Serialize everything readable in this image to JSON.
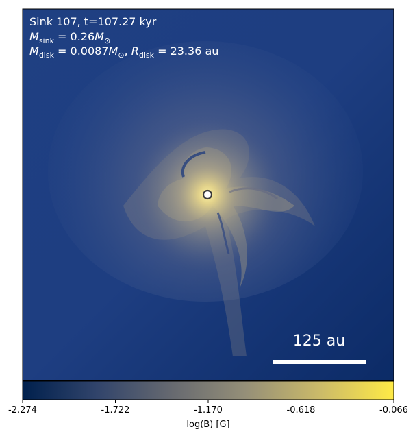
{
  "annotations": {
    "line1": "Sink 107, t=107.27 kyr",
    "line2_parts": [
      "M",
      "sink",
      " = 0.26",
      "M",
      "⊙"
    ],
    "line3_parts": [
      "M",
      "disk",
      " = 0.0087",
      "M",
      "⊙",
      ", ",
      "R",
      "disk",
      " = 23.36 au"
    ]
  },
  "scalebar": {
    "label": "125 au",
    "length_au": 125
  },
  "colorbar": {
    "label": "log(B) [G]",
    "ticks": [
      "-2.274",
      "-1.722",
      "-1.170",
      "-0.618",
      "-0.066"
    ],
    "min": -2.274,
    "max": -0.066,
    "stops": [
      "#00204d",
      "#31446b",
      "#666970",
      "#958f78",
      "#cbba69",
      "#ffea46"
    ]
  },
  "chart_data": {
    "type": "heatmap",
    "title": "Sink 107, t=107.27 kyr",
    "quantity": "log(B) [G]",
    "colormap": "cividis",
    "vmin": -2.274,
    "vmax": -0.066,
    "colorbar_ticks": [
      -2.274,
      -1.722,
      -1.17,
      -0.618,
      -0.066
    ],
    "sink": {
      "id": 107,
      "t_kyr": 107.27,
      "M_sink_Msun": 0.26,
      "M_disk_Msun": 0.0087,
      "R_disk_au": 23.36
    },
    "scalebar_au": 125,
    "grid": false
  }
}
